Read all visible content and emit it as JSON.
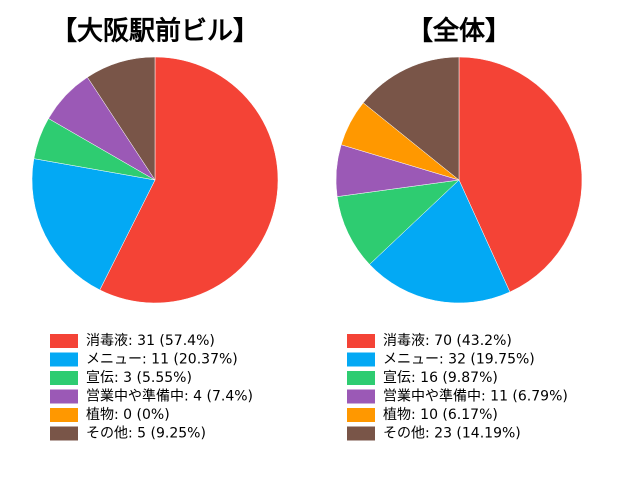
{
  "chart_data": [
    {
      "type": "pie",
      "title": "【大阪駅前ビル】",
      "categories": [
        "消毒液: 31 (57.4%)",
        "メニュー: 11 (20.37%)",
        "宣伝: 3 (5.55%)",
        "営業中や準備中: 4 (7.4%)",
        "植物: 0 (0%)",
        "その他: 5 (9.25%)"
      ],
      "values": [
        31,
        11,
        3,
        4,
        0,
        5
      ],
      "colors": [
        "#f44336",
        "#03a9f4",
        "#2ecc71",
        "#9b59b6",
        "#ff9800",
        "#795548"
      ]
    },
    {
      "type": "pie",
      "title": "【全体】",
      "categories": [
        "消毒液: 70 (43.2%)",
        "メニュー: 32 (19.75%)",
        "宣伝: 16 (9.87%)",
        "営業中や準備中: 11 (6.79%)",
        "植物: 10 (6.17%)",
        "その他: 23 (14.19%)"
      ],
      "values": [
        70,
        32,
        16,
        11,
        10,
        23
      ],
      "colors": [
        "#f44336",
        "#03a9f4",
        "#2ecc71",
        "#9b59b6",
        "#ff9800",
        "#795548"
      ]
    }
  ]
}
